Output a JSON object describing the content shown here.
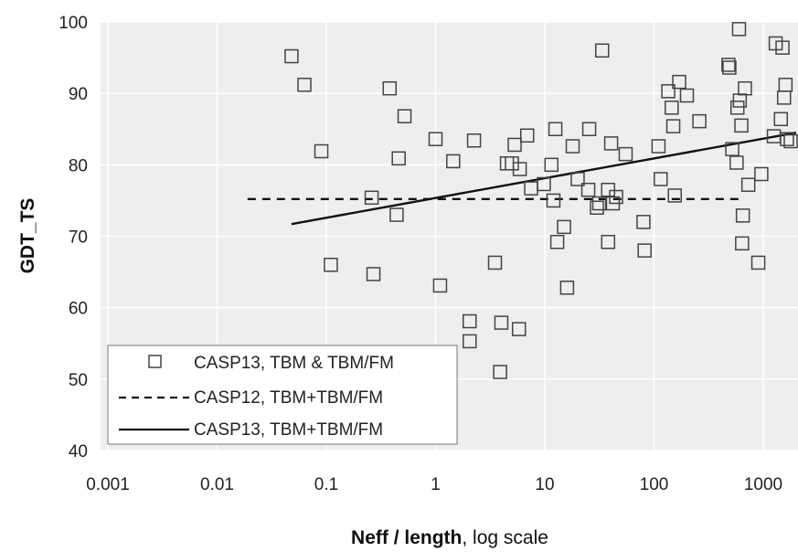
{
  "chart_data": {
    "type": "scatter",
    "xlabel_bold": "Neff / length",
    "xlabel_rest": ", log scale",
    "ylabel": "GDT_TS",
    "x_scale": "log",
    "xlim": [
      0.001,
      2000
    ],
    "ylim": [
      40,
      100
    ],
    "x_ticks": [
      {
        "value": 0.001,
        "label": "0.001"
      },
      {
        "value": 0.01,
        "label": "0.01"
      },
      {
        "value": 0.1,
        "label": "0.1"
      },
      {
        "value": 1,
        "label": "1"
      },
      {
        "value": 10,
        "label": "10"
      },
      {
        "value": 100,
        "label": "100"
      },
      {
        "value": 1000,
        "label": "1000"
      }
    ],
    "y_ticks": [
      {
        "value": 40,
        "label": "40"
      },
      {
        "value": 50,
        "label": "50"
      },
      {
        "value": 60,
        "label": "60"
      },
      {
        "value": 70,
        "label": "70"
      },
      {
        "value": 80,
        "label": "80"
      },
      {
        "value": 90,
        "label": "90"
      },
      {
        "value": 100,
        "label": "100"
      }
    ],
    "grid": true,
    "legend_position": "bottom-left",
    "colors": {
      "plot_bg": "#eeeeee",
      "grid": "#ffffff",
      "marker": "#444444",
      "line": "#111111"
    },
    "series": [
      {
        "name": "CASP13, TBM & TBM/FM",
        "kind": "scatter",
        "marker": "open-square",
        "points": [
          [
            0.048,
            95.2
          ],
          [
            0.063,
            91.2
          ],
          [
            0.09,
            81.9
          ],
          [
            0.11,
            66.0
          ],
          [
            0.26,
            75.4
          ],
          [
            0.27,
            64.7
          ],
          [
            0.38,
            90.7
          ],
          [
            0.44,
            73.0
          ],
          [
            0.46,
            80.9
          ],
          [
            0.52,
            86.8
          ],
          [
            1.0,
            83.6
          ],
          [
            1.1,
            63.1
          ],
          [
            1.45,
            80.5
          ],
          [
            2.05,
            58.1
          ],
          [
            2.05,
            55.3
          ],
          [
            2.25,
            83.4
          ],
          [
            3.5,
            66.3
          ],
          [
            4.0,
            57.9
          ],
          [
            3.9,
            51.0
          ],
          [
            4.5,
            80.2
          ],
          [
            5.0,
            80.2
          ],
          [
            5.3,
            82.8
          ],
          [
            5.8,
            57.0
          ],
          [
            5.9,
            79.4
          ],
          [
            6.9,
            84.1
          ],
          [
            7.5,
            76.7
          ],
          [
            9.8,
            77.3
          ],
          [
            11.5,
            80.0
          ],
          [
            12.0,
            75.0
          ],
          [
            12.5,
            85.0
          ],
          [
            13.0,
            69.2
          ],
          [
            15.0,
            71.3
          ],
          [
            16.0,
            62.8
          ],
          [
            18.0,
            82.6
          ],
          [
            20.0,
            78.0
          ],
          [
            25.0,
            76.5
          ],
          [
            25.5,
            85.0
          ],
          [
            30.0,
            74.0
          ],
          [
            31.5,
            74.6
          ],
          [
            33.5,
            96.0
          ],
          [
            38.0,
            69.2
          ],
          [
            38.0,
            76.5
          ],
          [
            40.5,
            83.0
          ],
          [
            42.0,
            74.6
          ],
          [
            45.0,
            75.5
          ],
          [
            55.0,
            81.5
          ],
          [
            80.0,
            72.0
          ],
          [
            82.0,
            68.0
          ],
          [
            110.0,
            82.6
          ],
          [
            115.0,
            78.0
          ],
          [
            135.0,
            90.3
          ],
          [
            145.0,
            88.0
          ],
          [
            150.0,
            85.4
          ],
          [
            155.0,
            75.7
          ],
          [
            170.0,
            91.6
          ],
          [
            200.0,
            89.7
          ],
          [
            260.0,
            86.1
          ],
          [
            480.0,
            94.0
          ],
          [
            490.0,
            93.6
          ],
          [
            520.0,
            82.2
          ],
          [
            570.0,
            80.3
          ],
          [
            580.0,
            88.0
          ],
          [
            600.0,
            99.0
          ],
          [
            610.0,
            89.0
          ],
          [
            630.0,
            85.5
          ],
          [
            640.0,
            69.0
          ],
          [
            650.0,
            72.9
          ],
          [
            680.0,
            90.7
          ],
          [
            730.0,
            77.2
          ],
          [
            900.0,
            66.3
          ],
          [
            960.0,
            78.7
          ],
          [
            1250.0,
            84.0
          ],
          [
            1300.0,
            97.0
          ],
          [
            1450.0,
            86.4
          ],
          [
            1500.0,
            96.4
          ],
          [
            1550.0,
            89.4
          ],
          [
            1600.0,
            91.2
          ],
          [
            1650.0,
            83.6
          ],
          [
            1900.0,
            83.3
          ]
        ]
      },
      {
        "name": "CASP12, TBM+TBM/FM",
        "kind": "line",
        "style": "dashed",
        "points": [
          [
            0.019,
            75.2
          ],
          [
            650.0,
            75.2
          ]
        ]
      },
      {
        "name": "CASP13, TBM+TBM/FM",
        "kind": "line",
        "style": "solid",
        "points": [
          [
            0.048,
            71.7
          ],
          [
            2000.0,
            84.5
          ]
        ]
      }
    ]
  }
}
